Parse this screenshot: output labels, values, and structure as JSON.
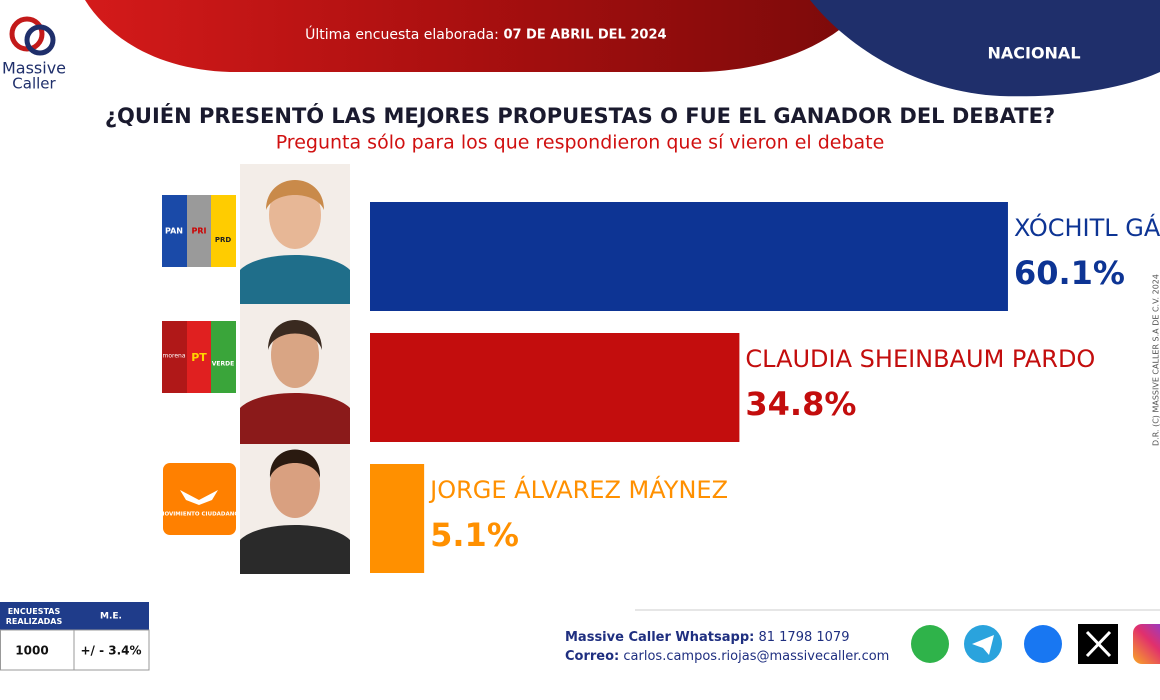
{
  "header": {
    "survey_label": "Última encuesta elaborada:",
    "date": "07 DE ABRIL DEL 2024",
    "region": "NACIONAL",
    "logo": [
      "Massive",
      "Caller"
    ]
  },
  "chart_data": {
    "type": "bar",
    "orientation": "horizontal",
    "title": "¿QUIÉN PRESENTÓ LAS MEJORES PROPUESTAS O FUE EL GANADOR DEL DEBATE?",
    "subtitle": "Pregunta sólo para los que respondieron que sí vieron el debate",
    "categories": [
      "XÓCHITL GÁLVEZ RUIZ",
      "CLAUDIA SHEINBAUM PARDO",
      "JORGE ÁLVAREZ MÁYNEZ"
    ],
    "values": [
      60.1,
      34.8,
      5.1
    ],
    "value_labels": [
      "60.1%",
      "34.8%",
      "5.1%"
    ],
    "colors": [
      "#0d3494",
      "#c30d0d",
      "#ff9000"
    ]
  },
  "parties": [
    [
      "PAN",
      "PRI",
      "PRD"
    ],
    [
      "morena",
      "PT",
      "VERDE"
    ],
    [
      "MOVIMIENTO CIUDADANO"
    ]
  ],
  "footer": {
    "table": {
      "headers": [
        "ENCUESTAS REALIZADAS",
        "M.E."
      ],
      "values": [
        "1000",
        "+/ - 3.4%"
      ]
    },
    "contact": {
      "whatsapp_label": "Massive Caller Whatsapp:",
      "whatsapp": "81 1798 1079",
      "email_label": "Correo:",
      "email": "carlos.campos.riojas@massivecaller.com"
    },
    "copyright": "D.R. (C) MASSIVE CALLER S.A DE C.V. 2024"
  }
}
